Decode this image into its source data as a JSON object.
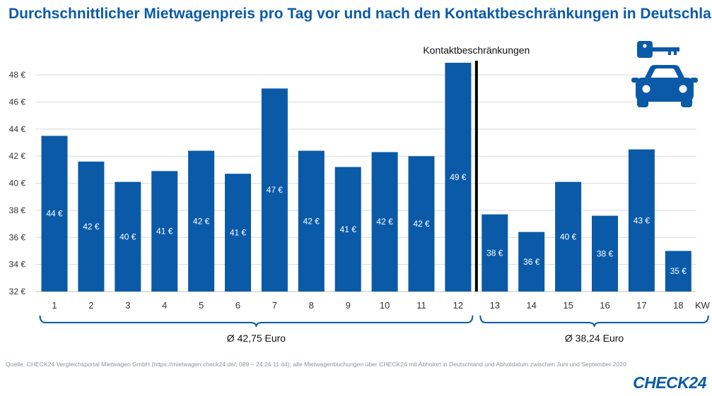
{
  "title": "Durchschnittlicher  Mietwagenpreis  pro Tag vor und nach den Kontaktbeschränkungen  in Deutschland",
  "source": "Quelle: CHECK24 Vergleichsportal Mietwagen GmbH (https://mietwagen.check24.de/; 089 – 24 24 11 44); alle Mietwagenbuchungen über CHECK24 mit Abholort in Deutschland und Abholdatum zwischen Juni und September 2020",
  "logo": "CHECK24",
  "colors": {
    "bar": "#0a5aa8",
    "text": "#333333",
    "accent": "#0a5aa8"
  },
  "icons": [
    "key-icon",
    "car-icon"
  ],
  "chart_data": {
    "type": "bar",
    "title": "Durchschnittlicher  Mietwagenpreis  pro Tag vor und nach den Kontaktbeschränkungen  in Deutschland",
    "xlabel": "KW",
    "ylabel": "",
    "ylim": [
      32,
      49
    ],
    "yticks": [
      32,
      34,
      36,
      38,
      40,
      42,
      44,
      46,
      48
    ],
    "ytick_labels": [
      "32 €",
      "34 €",
      "36 €",
      "38 €",
      "40 €",
      "42 €",
      "44 €",
      "46 €",
      "48 €"
    ],
    "grid": true,
    "categories": [
      "1",
      "2",
      "3",
      "4",
      "5",
      "6",
      "7",
      "8",
      "9",
      "10",
      "11",
      "12",
      "13",
      "14",
      "15",
      "16",
      "17",
      "18"
    ],
    "values": [
      43.5,
      41.6,
      40.1,
      40.9,
      42.4,
      40.7,
      47.0,
      42.4,
      41.2,
      42.3,
      42.0,
      48.9,
      37.7,
      36.4,
      40.1,
      37.6,
      42.5,
      35.0
    ],
    "value_labels": [
      "44 €",
      "42 €",
      "40 €",
      "41 €",
      "42 €",
      "41 €",
      "47 €",
      "42 €",
      "41 €",
      "42 €",
      "42 €",
      "49 €",
      "38 €",
      "36 €",
      "40 €",
      "38 €",
      "43 €",
      "35 €"
    ],
    "divider": {
      "after_category": "12",
      "label": "Kontaktbeschränkungen"
    },
    "groups": [
      {
        "from": "1",
        "to": "12",
        "label": "Ø 42,75 Euro"
      },
      {
        "from": "13",
        "to": "18",
        "label": "Ø 38,24 Euro"
      }
    ]
  }
}
